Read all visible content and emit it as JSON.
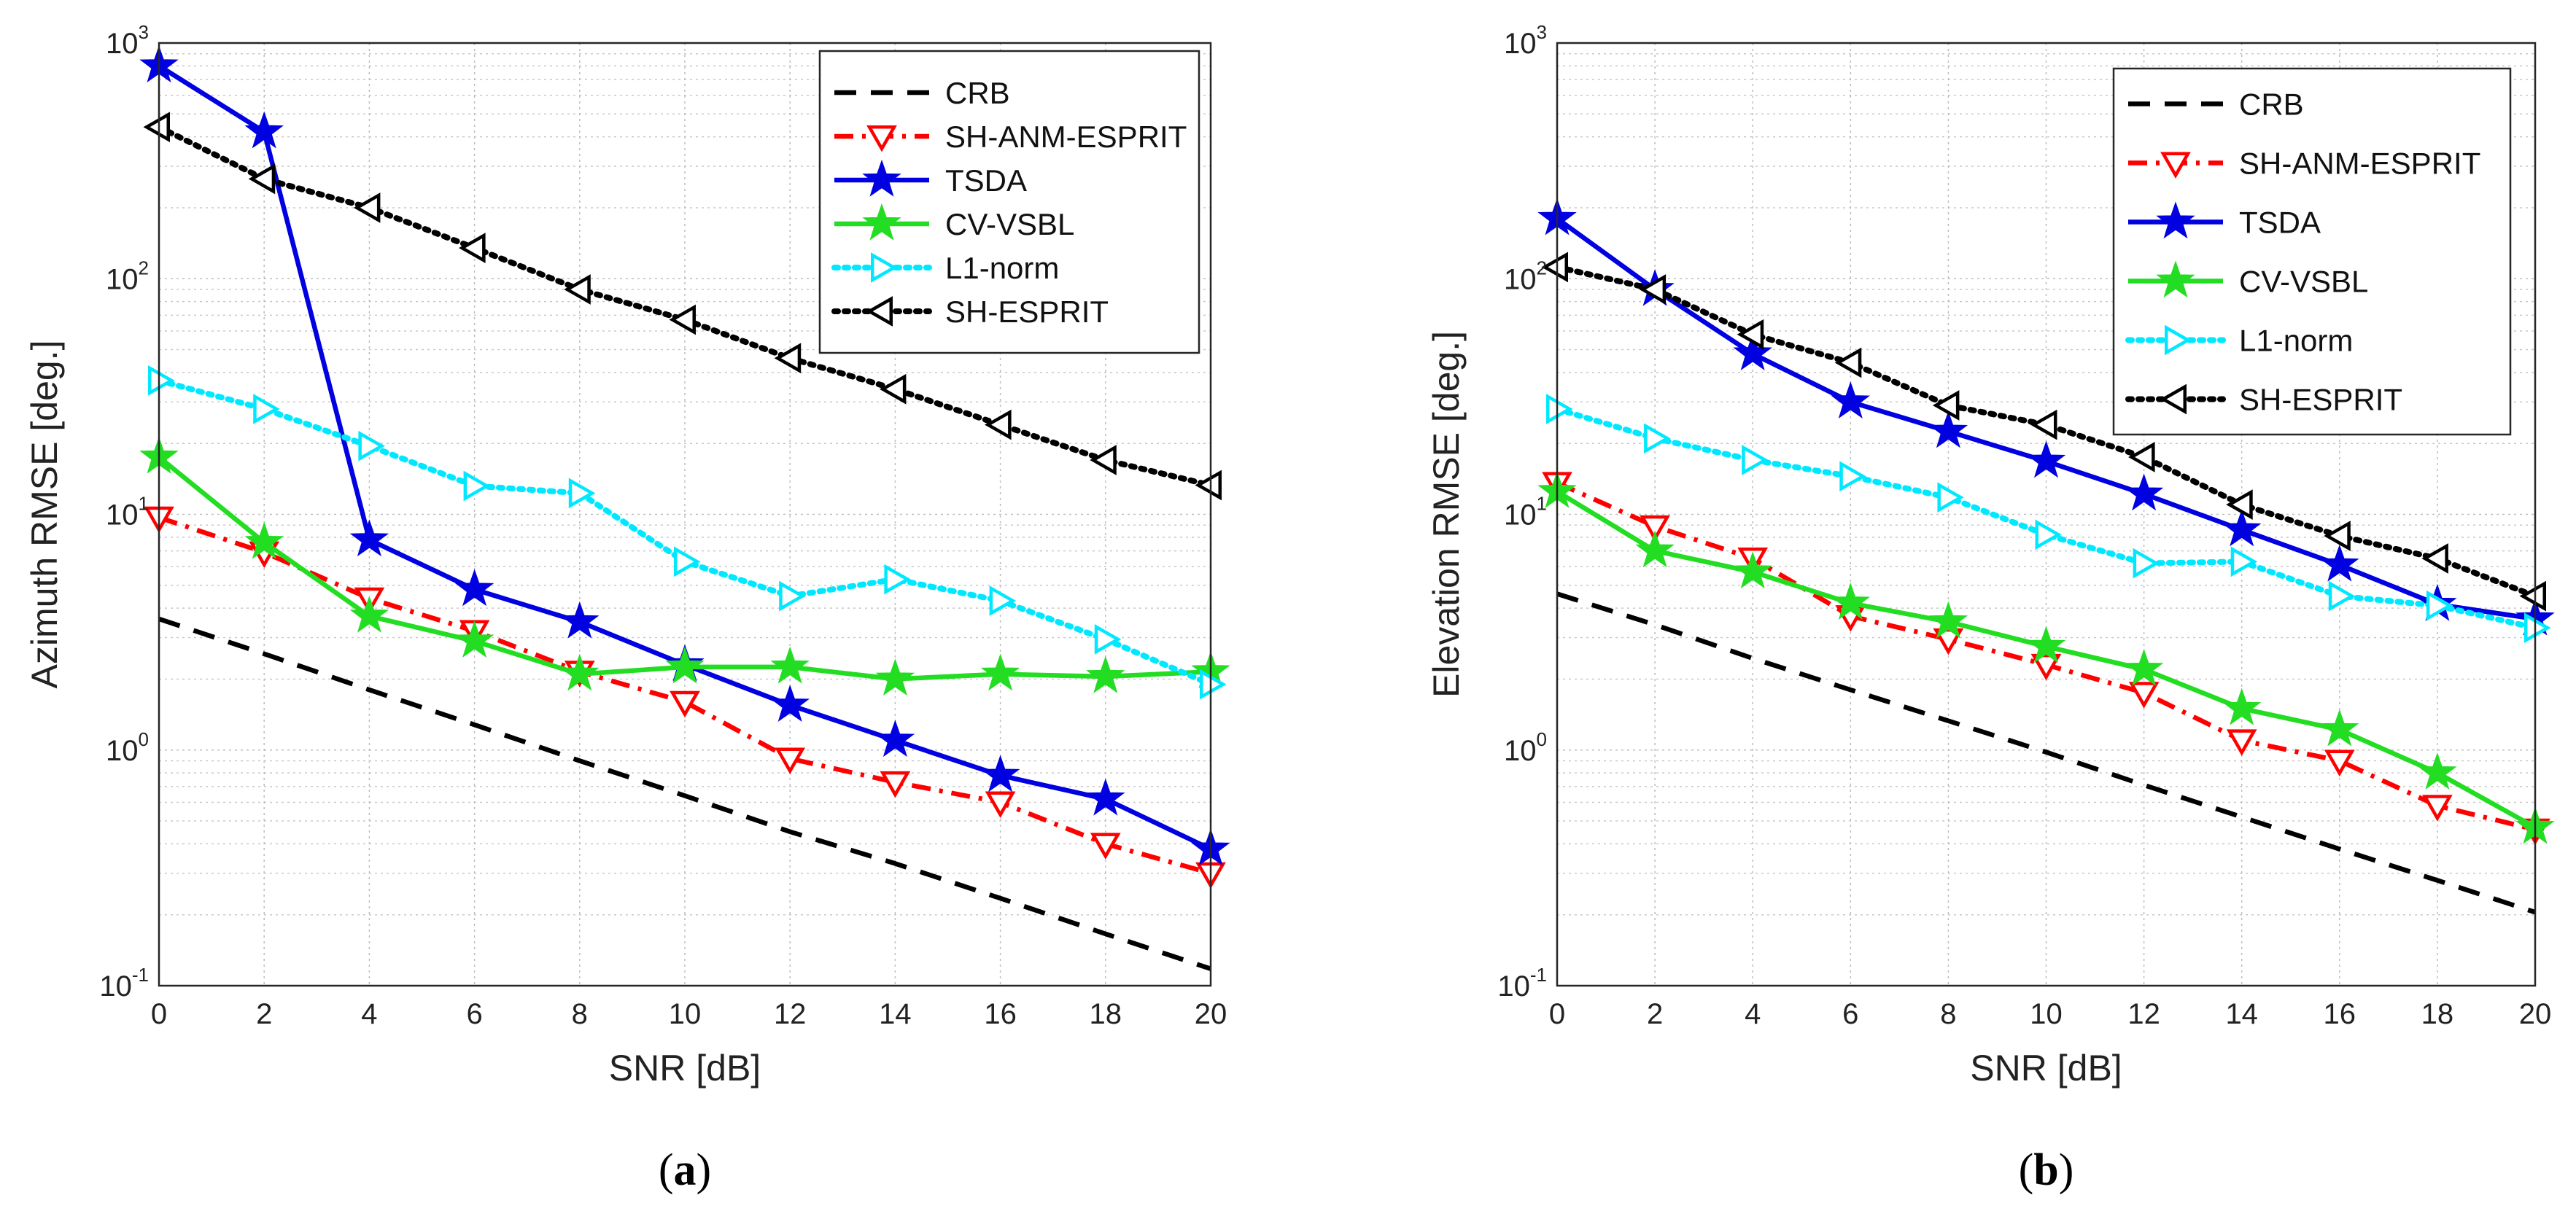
{
  "colors": {
    "CRB": "#000000",
    "SH-ANM-ESPRIT": "#ff0000",
    "TSDA": "#0000e0",
    "CV-VSBL": "#22dd22",
    "L1-norm": "#00e8ff",
    "SH-ESPRIT": "#000000"
  },
  "chart_data": [
    {
      "type": "line",
      "yscale": "log",
      "caption_open": "(",
      "caption_letter": "a",
      "caption_close": ")",
      "xlabel": "SNR [dB]",
      "ylabel": "Azimuth RMSE [deg.]",
      "xlim": [
        0,
        20
      ],
      "ylim": [
        0.1,
        1000
      ],
      "xticks": [
        "0",
        "2",
        "4",
        "6",
        "8",
        "10",
        "12",
        "14",
        "16",
        "18",
        "20"
      ],
      "ytick_base": "10",
      "ytick_exps": [
        "-1",
        "0",
        "1",
        "2",
        "3"
      ],
      "legend_position": "top-right",
      "x": [
        0,
        2,
        4,
        6,
        8,
        10,
        12,
        14,
        16,
        18,
        20
      ],
      "series": [
        {
          "name": "CRB",
          "style": "dashed",
          "marker": "none",
          "values": [
            3.6,
            2.56,
            1.8,
            1.28,
            0.9,
            0.64,
            0.45,
            0.33,
            0.235,
            0.166,
            0.118
          ]
        },
        {
          "name": "SH-ANM-ESPRIT",
          "style": "dashdot",
          "marker": "triangle-down",
          "values": [
            9.7,
            6.9,
            4.4,
            3.2,
            2.15,
            1.6,
            0.92,
            0.73,
            0.6,
            0.4,
            0.3
          ]
        },
        {
          "name": "TSDA",
          "style": "solid",
          "marker": "star",
          "values": [
            800,
            420,
            7.8,
            4.8,
            3.5,
            2.3,
            1.55,
            1.1,
            0.78,
            0.62,
            0.38
          ]
        },
        {
          "name": "CV-VSBL",
          "style": "solid",
          "marker": "star",
          "values": [
            17.5,
            7.6,
            3.7,
            2.9,
            2.1,
            2.25,
            2.25,
            2.0,
            2.1,
            2.05,
            2.15
          ]
        },
        {
          "name": "L1-norm",
          "style": "dotted",
          "marker": "triangle-right",
          "values": [
            37,
            28,
            19.5,
            13.2,
            12.3,
            6.3,
            4.5,
            5.3,
            4.3,
            2.95,
            1.9
          ]
        },
        {
          "name": "SH-ESPRIT",
          "style": "dotted",
          "marker": "triangle-left",
          "values": [
            440,
            265,
            200,
            135,
            90,
            67,
            46,
            34,
            24,
            17,
            13.3
          ]
        }
      ]
    },
    {
      "type": "line",
      "yscale": "log",
      "caption_open": "(",
      "caption_letter": "b",
      "caption_close": ")",
      "xlabel": "SNR [dB]",
      "ylabel": "Elevation RMSE [deg.]",
      "xlim": [
        0,
        20
      ],
      "ylim": [
        0.1,
        1000
      ],
      "xticks": [
        "0",
        "2",
        "4",
        "6",
        "8",
        "10",
        "12",
        "14",
        "16",
        "18",
        "20"
      ],
      "ytick_base": "10",
      "ytick_exps": [
        "-1",
        "0",
        "1",
        "2",
        "3"
      ],
      "legend_position": "top-right",
      "x": [
        0,
        2,
        4,
        6,
        8,
        10,
        12,
        14,
        16,
        18,
        20
      ],
      "series": [
        {
          "name": "CRB",
          "style": "dashed",
          "marker": "none",
          "values": [
            4.6,
            3.4,
            2.45,
            1.8,
            1.33,
            0.98,
            0.71,
            0.52,
            0.38,
            0.28,
            0.205
          ]
        },
        {
          "name": "SH-ANM-ESPRIT",
          "style": "dashdot",
          "marker": "triangle-down",
          "values": [
            13.6,
            8.9,
            6.5,
            3.7,
            2.95,
            2.3,
            1.75,
            1.1,
            0.9,
            0.58,
            0.46
          ]
        },
        {
          "name": "TSDA",
          "style": "solid",
          "marker": "star",
          "values": [
            180,
            90,
            48,
            30,
            22.5,
            16.8,
            12.2,
            8.6,
            6.1,
            4.15,
            3.6
          ]
        },
        {
          "name": "CV-VSBL",
          "style": "solid",
          "marker": "star",
          "values": [
            12.5,
            7.0,
            5.7,
            4.2,
            3.5,
            2.75,
            2.2,
            1.5,
            1.22,
            0.8,
            0.47
          ]
        },
        {
          "name": "L1-norm",
          "style": "dotted",
          "marker": "triangle-right",
          "values": [
            28,
            21,
            17,
            14.5,
            11.8,
            8.2,
            6.2,
            6.3,
            4.5,
            4.1,
            3.3
          ]
        },
        {
          "name": "SH-ESPRIT",
          "style": "dotted",
          "marker": "triangle-left",
          "values": [
            112,
            90,
            58,
            44,
            29,
            24,
            17.5,
            11,
            8.1,
            6.5,
            4.5
          ]
        }
      ]
    }
  ]
}
